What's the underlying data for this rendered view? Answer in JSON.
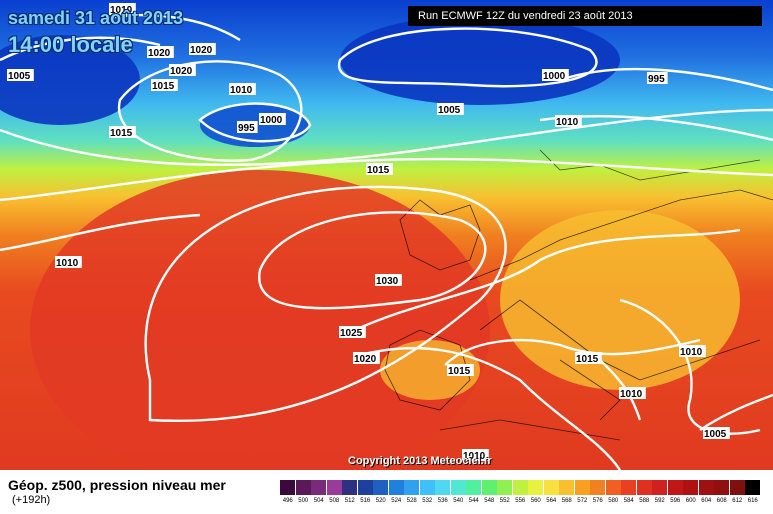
{
  "header": {
    "date": "samedi 31 août 2013",
    "time": "14:00 locale",
    "run": "Run ECMWF 12Z du vendredi 23 août 2013"
  },
  "copyright": "Copyright 2013 Meteociel.fr",
  "footer": {
    "title": "Géop. z500, pression niveau mer",
    "subtitle": "(+192h)"
  },
  "scale": {
    "labels": [
      "496",
      "500",
      "504",
      "508",
      "512",
      "516",
      "520",
      "524",
      "528",
      "532",
      "536",
      "540",
      "544",
      "548",
      "552",
      "556",
      "560",
      "564",
      "568",
      "572",
      "576",
      "580",
      "584",
      "588",
      "592",
      "596",
      "600",
      "604",
      "608",
      "612",
      "616"
    ],
    "colors": [
      "#3a0a3a",
      "#5a1a5a",
      "#7a2a7a",
      "#9a3a9a",
      "#303080",
      "#2040a0",
      "#2060c0",
      "#1f80e0",
      "#30a0f0",
      "#40c0f8",
      "#50d8f0",
      "#50e8d0",
      "#50f0a0",
      "#60f070",
      "#90f050",
      "#c0f040",
      "#e8f040",
      "#f8e040",
      "#f8c030",
      "#f8a020",
      "#f08020",
      "#f06020",
      "#e84020",
      "#e03020",
      "#d02020",
      "#c01818",
      "#b01010",
      "#a01010",
      "#901010",
      "#801010",
      "#000000"
    ]
  },
  "isobars": [
    {
      "text": "1010",
      "id": "a"
    },
    {
      "text": "1020",
      "id": "b"
    },
    {
      "text": "1020",
      "id": "c"
    },
    {
      "text": "1020",
      "id": "d"
    },
    {
      "text": "1005",
      "id": "e"
    },
    {
      "text": "1015",
      "id": "f"
    },
    {
      "text": "1010",
      "id": "g"
    },
    {
      "text": "1015",
      "id": "h"
    },
    {
      "text": "1000",
      "id": "i"
    },
    {
      "text": "995",
      "id": "j"
    },
    {
      "text": "1005",
      "id": "k"
    },
    {
      "text": "1000",
      "id": "l"
    },
    {
      "text": "995",
      "id": "m"
    },
    {
      "text": "1010",
      "id": "n"
    },
    {
      "text": "1015",
      "id": "o"
    },
    {
      "text": "1010",
      "id": "p"
    },
    {
      "text": "1030",
      "id": "q"
    },
    {
      "text": "1025",
      "id": "r"
    },
    {
      "text": "1020",
      "id": "s"
    },
    {
      "text": "1015",
      "id": "t"
    },
    {
      "text": "1015",
      "id": "u"
    },
    {
      "text": "1010",
      "id": "v"
    },
    {
      "text": "1010",
      "id": "w"
    },
    {
      "text": "1005",
      "id": "x"
    },
    {
      "text": "1010",
      "id": "y"
    }
  ],
  "colors": {
    "low": "#0a3fd0",
    "mid": "#30c0f0",
    "high": "#e84020"
  }
}
